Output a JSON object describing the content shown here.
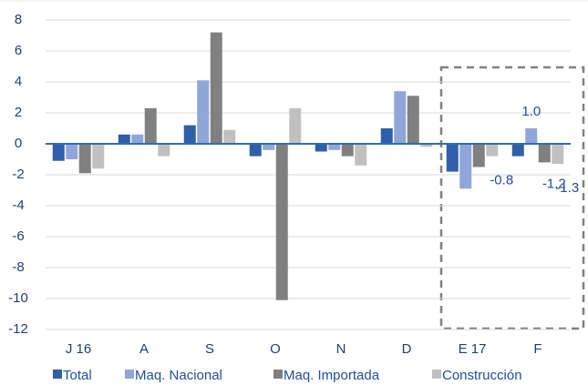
{
  "chart_data": {
    "type": "bar",
    "categories": [
      "J 16",
      "A",
      "S",
      "O",
      "N",
      "D",
      "E 17",
      "F"
    ],
    "series": [
      {
        "name": "Total",
        "color": "#2e5fa8",
        "values": [
          -1.1,
          0.6,
          1.2,
          -0.8,
          -0.5,
          1.0,
          -1.8,
          -0.8
        ]
      },
      {
        "name": "Maq. Nacional",
        "color": "#8fa6d8",
        "values": [
          -1.0,
          0.6,
          4.1,
          -0.4,
          -0.4,
          3.4,
          -2.9,
          1.0
        ],
        "value_labels": [
          null,
          null,
          null,
          null,
          null,
          null,
          null,
          "1.0"
        ]
      },
      {
        "name": "Maq. Importada",
        "color": "#808080",
        "values": [
          -1.9,
          2.3,
          7.2,
          -10.1,
          -0.8,
          3.1,
          -1.5,
          -1.2
        ],
        "value_labels": [
          null,
          null,
          null,
          null,
          null,
          null,
          null,
          "-1.2"
        ]
      },
      {
        "name": "Construcción",
        "color": "#c0c0c0",
        "values": [
          -1.6,
          -0.8,
          0.9,
          2.3,
          -1.4,
          -0.2,
          -0.8,
          -1.3
        ],
        "value_labels": [
          null,
          null,
          null,
          null,
          null,
          null,
          "-0.8",
          "-1.3"
        ]
      }
    ],
    "ylim": [
      -12,
      8
    ],
    "yticks": [
      -12,
      -10,
      -8,
      -6,
      -4,
      -2,
      0,
      2,
      4,
      6,
      8
    ],
    "grid": true
  }
}
